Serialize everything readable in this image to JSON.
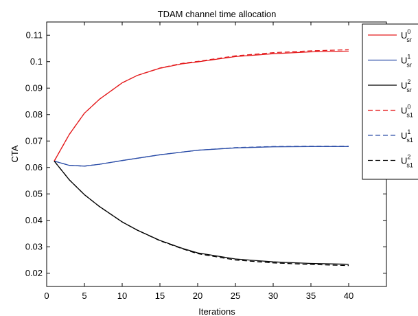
{
  "chart_data": {
    "type": "line",
    "title": "TDAM channel time allocation",
    "xlabel": "Iterations",
    "ylabel": "CTA",
    "xlim": [
      0,
      45
    ],
    "ylim": [
      0.015,
      0.115
    ],
    "xticks": [
      "0",
      "5",
      "10",
      "15",
      "20",
      "25",
      "30",
      "35",
      "40"
    ],
    "yticks": [
      "0.02",
      "0.03",
      "0.04",
      "0.05",
      "0.06",
      "0.07",
      "0.08",
      "0.09",
      "0.1",
      "0.11"
    ],
    "grid": false,
    "legend_position": "top-right",
    "series": [
      {
        "name": "U^0_sr",
        "base": "U",
        "sup": "0",
        "sub": "sr",
        "color": "#e41a1c",
        "dash": "solid",
        "x": [
          1,
          3,
          5,
          7,
          10,
          12,
          15,
          18,
          20,
          25,
          30,
          35,
          40
        ],
        "y": [
          0.0624,
          0.0725,
          0.0805,
          0.0858,
          0.092,
          0.0948,
          0.0975,
          0.0992,
          0.0999,
          0.1019,
          0.103,
          0.1037,
          0.104
        ]
      },
      {
        "name": "U^1_sr",
        "base": "U",
        "sup": "1",
        "sub": "sr",
        "color": "#2c4ea8",
        "dash": "solid",
        "x": [
          1,
          3,
          5,
          7,
          10,
          15,
          20,
          25,
          30,
          35,
          40
        ],
        "y": [
          0.0624,
          0.0608,
          0.0605,
          0.0612,
          0.0626,
          0.0648,
          0.0665,
          0.0674,
          0.0678,
          0.0679,
          0.0679
        ]
      },
      {
        "name": "U^2_sr",
        "base": "U",
        "sup": "2",
        "sub": "sr",
        "color": "#000000",
        "dash": "solid",
        "x": [
          1,
          3,
          5,
          7,
          10,
          12,
          15,
          18,
          20,
          25,
          30,
          35,
          40
        ],
        "y": [
          0.0624,
          0.0553,
          0.0497,
          0.0452,
          0.0394,
          0.0363,
          0.0324,
          0.0294,
          0.0277,
          0.0254,
          0.0243,
          0.0237,
          0.0234
        ]
      },
      {
        "name": "U^0_s1",
        "base": "U",
        "sup": "0",
        "sub": "s1",
        "color": "#e41a1c",
        "dash": "dashed",
        "x": [
          1,
          3,
          5,
          7,
          10,
          12,
          15,
          18,
          20,
          25,
          30,
          35,
          40
        ],
        "y": [
          0.0624,
          0.0725,
          0.0805,
          0.0858,
          0.092,
          0.0948,
          0.0976,
          0.0994,
          0.1001,
          0.1022,
          0.1034,
          0.1041,
          0.1045
        ]
      },
      {
        "name": "U^1_s1",
        "base": "U",
        "sup": "1",
        "sub": "s1",
        "color": "#2c4ea8",
        "dash": "dashed",
        "x": [
          1,
          3,
          5,
          7,
          10,
          15,
          20,
          25,
          30,
          35,
          40
        ],
        "y": [
          0.0624,
          0.0608,
          0.0605,
          0.0612,
          0.0626,
          0.0648,
          0.0665,
          0.0675,
          0.0679,
          0.068,
          0.068
        ]
      },
      {
        "name": "U^2_s1",
        "base": "U",
        "sup": "2",
        "sub": "s1",
        "color": "#000000",
        "dash": "dashed",
        "x": [
          1,
          3,
          5,
          7,
          10,
          12,
          15,
          18,
          20,
          25,
          30,
          35,
          40
        ],
        "y": [
          0.0624,
          0.0553,
          0.0497,
          0.0452,
          0.0394,
          0.0363,
          0.0323,
          0.0292,
          0.0274,
          0.025,
          0.0239,
          0.0233,
          0.0229
        ]
      }
    ]
  }
}
